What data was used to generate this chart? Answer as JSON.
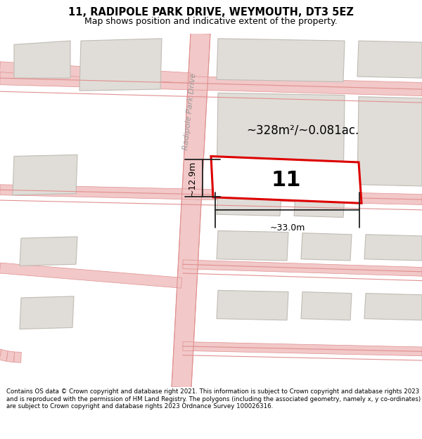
{
  "title_line1": "11, RADIPOLE PARK DRIVE, WEYMOUTH, DT3 5EZ",
  "title_line2": "Map shows position and indicative extent of the property.",
  "footer_text": "Contains OS data © Crown copyright and database right 2021. This information is subject to Crown copyright and database rights 2023 and is reproduced with the permission of HM Land Registry. The polygons (including the associated geometry, namely x, y co-ordinates) are subject to Crown copyright and database rights 2023 Ordnance Survey 100026316.",
  "map_bg_color": "#f5f3f0",
  "header_bg": "#ffffff",
  "footer_bg": "#ffffff",
  "road_color": "#f2c8c8",
  "road_border_color": "#e09090",
  "building_fill": "#e0ddd8",
  "building_outline": "#c0bbb4",
  "highlight_fill": "#ffffff",
  "highlight_outline": "#dd0000",
  "area_text": "~328m²/~0.081ac.",
  "number_text": "11",
  "dim_width": "~33.0m",
  "dim_height": "~12.9m",
  "road_label": "Radipole Park Drive"
}
